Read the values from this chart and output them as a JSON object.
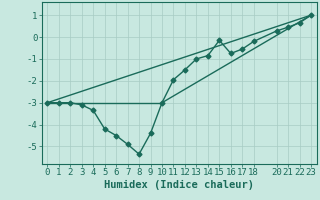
{
  "title": "",
  "xlabel": "Humidex (Indice chaleur)",
  "ylabel": "",
  "background_color": "#c8e8e0",
  "grid_color": "#a8ccc4",
  "line_color": "#1a6b5a",
  "xlim": [
    -0.5,
    23.5
  ],
  "ylim": [
    -5.8,
    1.6
  ],
  "xticks": [
    0,
    1,
    2,
    3,
    4,
    5,
    6,
    7,
    8,
    9,
    10,
    11,
    12,
    13,
    14,
    15,
    16,
    17,
    18,
    20,
    21,
    22,
    23
  ],
  "yticks": [
    -5,
    -4,
    -3,
    -2,
    -1,
    0,
    1
  ],
  "series": [
    [
      0,
      -3.0
    ],
    [
      1,
      -3.0
    ],
    [
      2,
      -3.0
    ],
    [
      3,
      -3.1
    ],
    [
      4,
      -3.35
    ],
    [
      5,
      -4.2
    ],
    [
      6,
      -4.5
    ],
    [
      7,
      -4.9
    ],
    [
      8,
      -5.35
    ],
    [
      9,
      -4.4
    ],
    [
      10,
      -3.0
    ],
    [
      11,
      -1.95
    ],
    [
      12,
      -1.5
    ],
    [
      13,
      -1.0
    ],
    [
      14,
      -0.85
    ],
    [
      15,
      -0.15
    ],
    [
      16,
      -0.75
    ],
    [
      17,
      -0.55
    ],
    [
      18,
      -0.2
    ],
    [
      20,
      0.28
    ],
    [
      21,
      0.45
    ],
    [
      22,
      0.65
    ],
    [
      23,
      1.0
    ]
  ],
  "extra_lines": [
    [
      [
        0,
        23
      ],
      [
        -3.0,
        1.0
      ]
    ],
    [
      [
        0,
        10
      ],
      [
        -3.0,
        -3.0
      ]
    ],
    [
      [
        10,
        23
      ],
      [
        -3.0,
        1.0
      ]
    ]
  ],
  "marker": "D",
  "markersize": 2.5,
  "linewidth": 1.0,
  "xlabel_fontsize": 7.5,
  "tick_fontsize": 6.5
}
